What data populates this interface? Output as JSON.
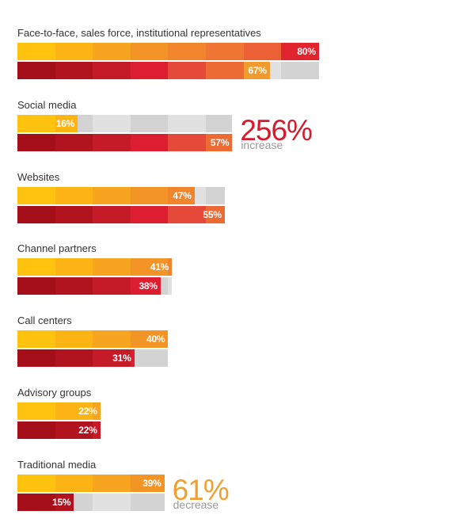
{
  "chart_data": {
    "type": "bar",
    "orientation": "horizontal",
    "categories": [
      "Face-to-face, sales force, institutional representatives",
      "Social media",
      "Websites",
      "Channel partners",
      "Call centers",
      "Advisory groups",
      "Traditional media"
    ],
    "series": [
      {
        "values": [
          80,
          16,
          47,
          41,
          40,
          22,
          39
        ],
        "labels": [
          "80%",
          "16%",
          "47%",
          "41%",
          "40%",
          "22%",
          "39%"
        ]
      },
      {
        "values": [
          67,
          57,
          55,
          38,
          31,
          22,
          15
        ],
        "labels": [
          "67%",
          "57%",
          "55%",
          "38%",
          "31%",
          "22%",
          "15%"
        ]
      }
    ],
    "xlim": [
      0,
      80
    ],
    "grid": false,
    "callouts": [
      {
        "category": "Social media",
        "value": "256%",
        "text": "increase",
        "color": "#d7192d"
      },
      {
        "category": "Traditional media",
        "value": "61%",
        "text": "decrease",
        "color": "#f0a030"
      }
    ],
    "colors": {
      "row1_ramp": [
        "#ffc20e",
        "#fcb415",
        "#f7a520",
        "#f39426",
        "#f0852c",
        "#ee7632",
        "#ec6036",
        "#e1252f"
      ],
      "row2_ramp": [
        "#a50f19",
        "#b1131f",
        "#c51a28",
        "#dd1e31",
        "#e4493a",
        "#ec6a34",
        "#f19a2d",
        "#f7c021"
      ],
      "track": "#e1e1e1",
      "track_alt": "#d3d3d3"
    }
  }
}
